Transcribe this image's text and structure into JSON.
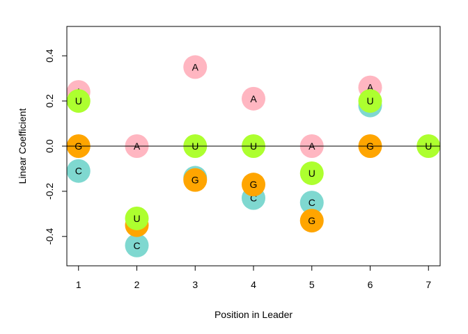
{
  "chart_data": {
    "type": "scatter",
    "xlabel": "Position in Leader",
    "ylabel": "Linear Coefficient",
    "xlim": [
      0.8,
      7.2
    ],
    "ylim": [
      -0.53,
      0.53
    ],
    "xticks": [
      1,
      2,
      3,
      4,
      5,
      6,
      7
    ],
    "yticks": [
      -0.4,
      -0.2,
      0.0,
      0.2,
      0.4
    ],
    "ytick_labels": [
      "-0.4",
      "-0.2",
      "0.0",
      "0.2",
      "0.4"
    ],
    "reference_line_y": 0,
    "colors": {
      "A": "#ffb6c1",
      "C": "#7fd8d0",
      "G": "#ffa500",
      "U": "#adff2f"
    },
    "points": [
      {
        "x": 1,
        "y": 0.24,
        "label": "A"
      },
      {
        "x": 1,
        "y": -0.11,
        "label": "C"
      },
      {
        "x": 1,
        "y": 0.0,
        "label": "G"
      },
      {
        "x": 1,
        "y": 0.2,
        "label": "U"
      },
      {
        "x": 2,
        "y": 0.0,
        "label": "A"
      },
      {
        "x": 2,
        "y": -0.44,
        "label": "C"
      },
      {
        "x": 2,
        "y": -0.35,
        "label": "G"
      },
      {
        "x": 2,
        "y": -0.32,
        "label": "U"
      },
      {
        "x": 3,
        "y": 0.35,
        "label": "A"
      },
      {
        "x": 3,
        "y": -0.14,
        "label": "C"
      },
      {
        "x": 3,
        "y": -0.15,
        "label": "G"
      },
      {
        "x": 3,
        "y": 0.0,
        "label": "U"
      },
      {
        "x": 4,
        "y": 0.21,
        "label": "A"
      },
      {
        "x": 4,
        "y": -0.23,
        "label": "C"
      },
      {
        "x": 4,
        "y": -0.17,
        "label": "G"
      },
      {
        "x": 4,
        "y": 0.0,
        "label": "U"
      },
      {
        "x": 5,
        "y": 0.0,
        "label": "A"
      },
      {
        "x": 5,
        "y": -0.25,
        "label": "C"
      },
      {
        "x": 5,
        "y": -0.33,
        "label": "G"
      },
      {
        "x": 5,
        "y": -0.12,
        "label": "U"
      },
      {
        "x": 6,
        "y": 0.26,
        "label": "A"
      },
      {
        "x": 6,
        "y": 0.18,
        "label": "C"
      },
      {
        "x": 6,
        "y": 0.0,
        "label": "G"
      },
      {
        "x": 6,
        "y": 0.2,
        "label": "U"
      },
      {
        "x": 7,
        "y": 0.0,
        "label": "U"
      }
    ]
  }
}
